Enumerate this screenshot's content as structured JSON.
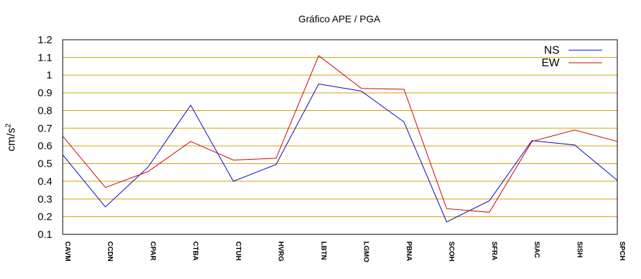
{
  "chart_data": {
    "type": "line",
    "title": "Gráfico  APE / PGA",
    "xlabel": "",
    "ylabel": "cm/s",
    "ylabel_superscript": "2",
    "categories": [
      "CAVM",
      "CCDN",
      "CPAR",
      "CTBA",
      "CTUH",
      "HVRG",
      "LBTN",
      "LGMO",
      "PBNA",
      "SCOH",
      "SFRA",
      "SIAC",
      "SISH",
      "SPCH"
    ],
    "ylim": [
      0.1,
      1.2
    ],
    "yticks": [
      "0.1",
      "0.2",
      "0.3",
      "0.4",
      "0.5",
      "0.6",
      "0.7",
      "0.8",
      "0.9",
      "1",
      "1.1",
      "1.2"
    ],
    "grid": "horizontal",
    "legend_position": "top-right",
    "series": [
      {
        "name": "NS",
        "color": "#0000cc",
        "values": [
          0.55,
          0.255,
          0.48,
          0.83,
          0.4,
          0.495,
          0.95,
          0.91,
          0.735,
          0.17,
          0.29,
          0.63,
          0.605,
          0.405
        ]
      },
      {
        "name": "EW",
        "color": "#cc0000",
        "values": [
          0.655,
          0.365,
          0.455,
          0.625,
          0.52,
          0.53,
          1.11,
          0.925,
          0.92,
          0.245,
          0.225,
          0.625,
          0.69,
          0.625
        ]
      }
    ],
    "grid_color": "#d4a000"
  }
}
